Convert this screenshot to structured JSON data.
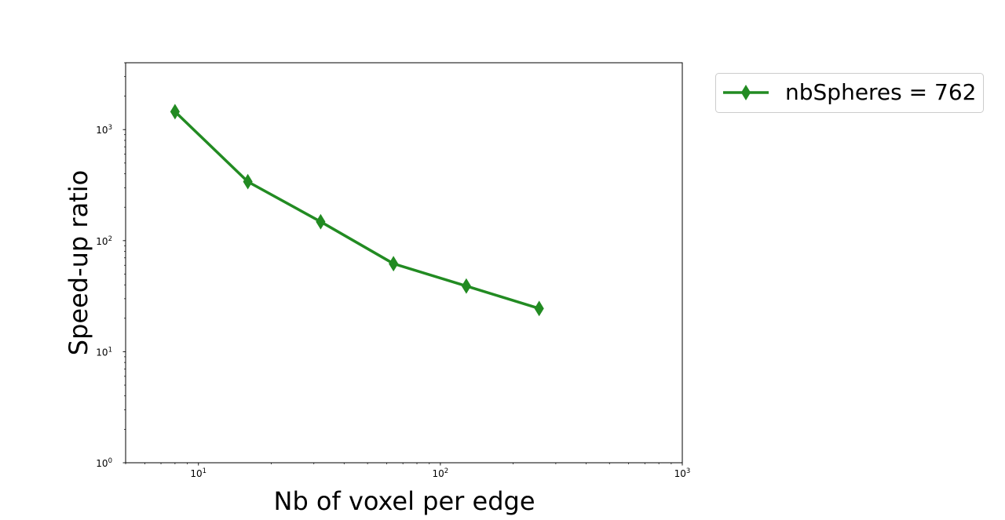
{
  "chart_data": {
    "type": "line",
    "title": "",
    "xlabel": "Nb of voxel per edge",
    "ylabel": "Speed-up ratio",
    "xscale": "log",
    "yscale": "log",
    "xlim": [
      5,
      1000
    ],
    "ylim": [
      1,
      4000
    ],
    "x_major_ticks": [
      10,
      100,
      1000
    ],
    "y_major_ticks": [
      1,
      10,
      100,
      1000
    ],
    "x_tick_labels": [
      {
        "base": "10",
        "exp": "1"
      },
      {
        "base": "10",
        "exp": "2"
      },
      {
        "base": "10",
        "exp": "3"
      }
    ],
    "y_tick_labels": [
      {
        "base": "10",
        "exp": "0"
      },
      {
        "base": "10",
        "exp": "1"
      },
      {
        "base": "10",
        "exp": "2"
      },
      {
        "base": "10",
        "exp": "3"
      }
    ],
    "grid": false,
    "legend_position": "outside-top-right",
    "series": [
      {
        "name": "nbSpheres = 762",
        "color": "#228B22",
        "marker": "thin-diamond",
        "x": [
          8,
          16,
          32,
          64,
          128,
          256
        ],
        "y": [
          1450,
          340,
          148,
          62,
          39,
          24.5
        ]
      }
    ]
  }
}
